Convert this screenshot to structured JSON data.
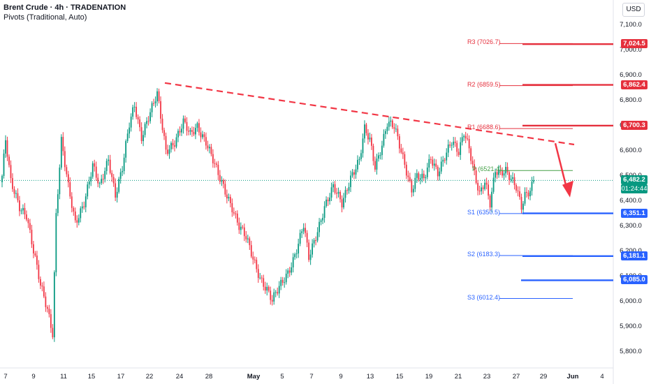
{
  "header": {
    "title": "Brent Crude · 4h · TRADENATION",
    "indicator": "Pivots (Traditional, Auto)"
  },
  "currency_button": "USD",
  "colors": {
    "up": "#089981",
    "down": "#f23645",
    "pivot_red": "#e5303d",
    "pivot_blue": "#2962ff",
    "pivot_green": "#43a047",
    "trendline": "#f23645"
  },
  "price_axis": {
    "labels": [
      "7,100.0",
      "7,000.0",
      "6,900.0",
      "6,800.0",
      "6,700.0",
      "6,600.0",
      "6,500.0",
      "6,400.0",
      "6,300.0",
      "6,200.0",
      "6,100.0",
      "6,000.0",
      "5,900.0",
      "5,800.0"
    ],
    "current_price": "6,482.2",
    "countdown": "01:24:44"
  },
  "time_axis": {
    "labels": [
      "7",
      "9",
      "11",
      "15",
      "17",
      "22",
      "24",
      "28",
      "May",
      "5",
      "7",
      "9",
      "13",
      "15",
      "19",
      "21",
      "23",
      "27",
      "29",
      "Jun",
      "4"
    ]
  },
  "pivots": [
    {
      "name": "R3",
      "label": "R3 (7026.7)",
      "tag": "7,024.5",
      "color": "red"
    },
    {
      "name": "R2",
      "label": "R2 (6859.5)",
      "tag": "6,862.4",
      "color": "red"
    },
    {
      "name": "R1",
      "label": "R1 (6688.6)",
      "tag": "6,700.3",
      "color": "red"
    },
    {
      "name": "P",
      "label": "P (6521.4)",
      "tag": "",
      "color": "green"
    },
    {
      "name": "S1",
      "label": "S1 (6350.5)",
      "tag": "6,351.1",
      "color": "blue"
    },
    {
      "name": "S2",
      "label": "S2 (6183.3)",
      "tag": "6,181.1",
      "color": "blue"
    },
    {
      "name": "S3",
      "label": "S3 (6012.4)",
      "tag": "6,085.0",
      "color": "blue"
    }
  ],
  "chart_data": {
    "type": "candlestick",
    "timeframe": "4h",
    "symbol": "Brent Crude",
    "ylim": [
      5750,
      7150
    ],
    "grid": false,
    "current_price": 6482.2,
    "pivot_levels": {
      "R3": 7026.7,
      "R2": 6859.5,
      "R1": 6688.6,
      "P": 6521.4,
      "S1": 6350.5,
      "S2": 6183.3,
      "S3": 6012.4
    },
    "horizontal_levels": [
      7024.5,
      6862.4,
      6700.3,
      6351.1,
      6181.1,
      6085.0
    ],
    "trendline": {
      "from_price": 6870,
      "to_price": 6625,
      "style": "dashed"
    },
    "projection_arrow": {
      "direction": "down",
      "from_price": 6630,
      "to_price": 6420
    },
    "anchors": [
      [
        0,
        6500
      ],
      [
        2,
        6640
      ],
      [
        5,
        6470
      ],
      [
        10,
        6380
      ],
      [
        14,
        6350
      ],
      [
        18,
        6200
      ],
      [
        22,
        6060
      ],
      [
        26,
        5970
      ],
      [
        29,
        5880
      ],
      [
        31,
        6350
      ],
      [
        34,
        6640
      ],
      [
        38,
        6450
      ],
      [
        42,
        6310
      ],
      [
        47,
        6400
      ],
      [
        52,
        6540
      ],
      [
        56,
        6450
      ],
      [
        61,
        6570
      ],
      [
        65,
        6430
      ],
      [
        69,
        6530
      ],
      [
        73,
        6700
      ],
      [
        76,
        6780
      ],
      [
        80,
        6660
      ],
      [
        83,
        6720
      ],
      [
        86,
        6770
      ],
      [
        89,
        6820
      ],
      [
        94,
        6600
      ],
      [
        99,
        6640
      ],
      [
        104,
        6710
      ],
      [
        108,
        6660
      ],
      [
        112,
        6700
      ],
      [
        117,
        6640
      ],
      [
        120,
        6580
      ],
      [
        124,
        6500
      ],
      [
        128,
        6440
      ],
      [
        132,
        6380
      ],
      [
        136,
        6300
      ],
      [
        140,
        6250
      ],
      [
        144,
        6170
      ],
      [
        148,
        6100
      ],
      [
        152,
        6050
      ],
      [
        155,
        6000
      ],
      [
        158,
        6040
      ],
      [
        161,
        6080
      ],
      [
        164,
        6120
      ],
      [
        167,
        6170
      ],
      [
        170,
        6230
      ],
      [
        173,
        6300
      ],
      [
        176,
        6170
      ],
      [
        179,
        6240
      ],
      [
        182,
        6310
      ],
      [
        185,
        6380
      ],
      [
        190,
        6450
      ],
      [
        195,
        6390
      ],
      [
        200,
        6500
      ],
      [
        205,
        6560
      ],
      [
        208,
        6680
      ],
      [
        211,
        6640
      ],
      [
        214,
        6540
      ],
      [
        218,
        6630
      ],
      [
        221,
        6710
      ],
      [
        225,
        6690
      ],
      [
        228,
        6620
      ],
      [
        231,
        6550
      ],
      [
        235,
        6450
      ],
      [
        238,
        6500
      ],
      [
        242,
        6480
      ],
      [
        246,
        6570
      ],
      [
        250,
        6520
      ],
      [
        254,
        6580
      ],
      [
        258,
        6630
      ],
      [
        262,
        6590
      ],
      [
        265,
        6680
      ],
      [
        268,
        6620
      ],
      [
        271,
        6510
      ],
      [
        274,
        6420
      ],
      [
        277,
        6470
      ],
      [
        280,
        6390
      ],
      [
        283,
        6530
      ],
      [
        286,
        6520
      ],
      [
        289,
        6520
      ],
      [
        292,
        6480
      ],
      [
        295,
        6450
      ],
      [
        298,
        6380
      ],
      [
        300,
        6430
      ],
      [
        303,
        6450
      ],
      [
        305,
        6482.2
      ]
    ]
  }
}
